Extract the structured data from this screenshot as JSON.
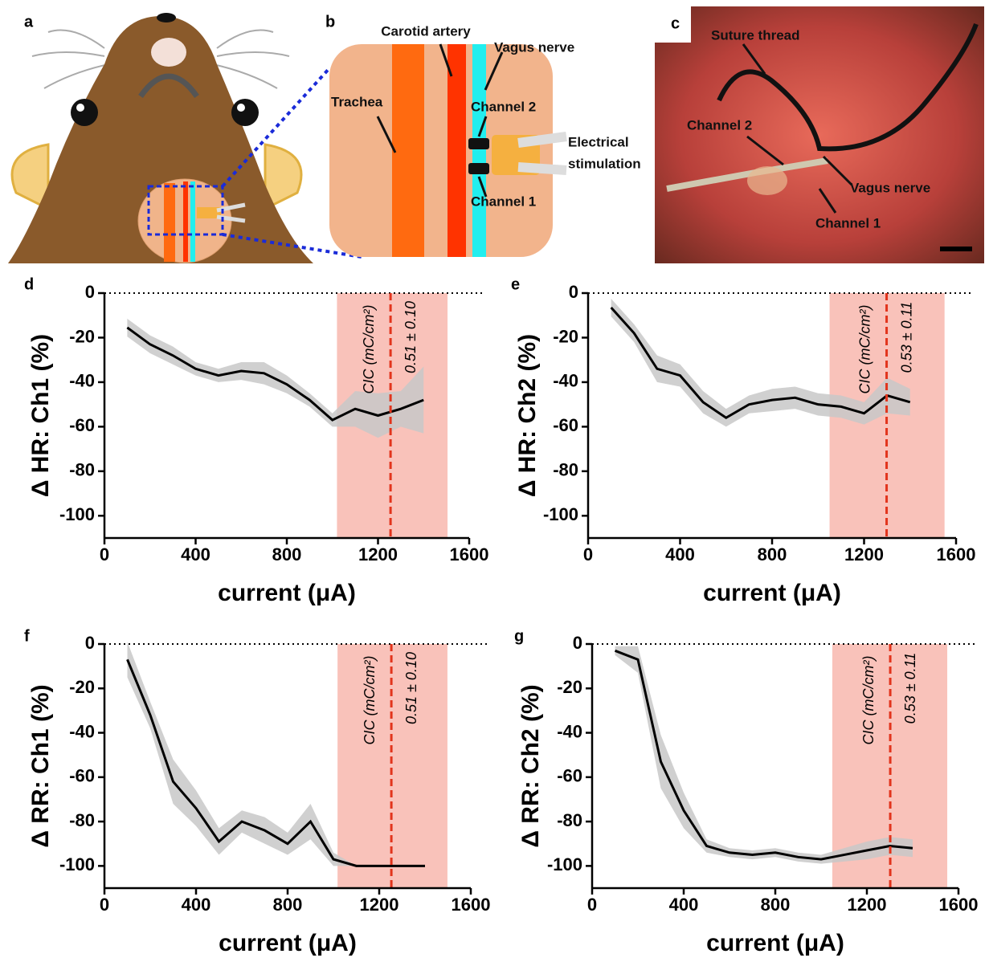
{
  "panels": {
    "a": "a",
    "b": "b",
    "c": "c"
  },
  "schematic": {
    "carotid": "Carotid artery",
    "vagus": "Vagus nerve",
    "trachea": "Trachea",
    "channel2": "Channel 2",
    "channel1": "Channel 1",
    "stimulation": [
      "Electrical",
      "stimulation"
    ]
  },
  "photo": {
    "suture": "Suture thread",
    "channel2": "Channel 2",
    "vagus": "Vagus nerve",
    "channel1": "Channel 1"
  },
  "chart_data": [
    {
      "type": "line",
      "panel": "d",
      "ylabel": "Δ HR: Ch1 (%)",
      "xlabel": "current (μA)",
      "x": [
        100,
        200,
        300,
        400,
        500,
        600,
        700,
        800,
        900,
        1000,
        1100,
        1200,
        1300,
        1400
      ],
      "series": [
        {
          "color": "#000000",
          "band_color": "#c8c8c8",
          "values": [
            -15.5,
            -23,
            -28,
            -34,
            -37,
            -35,
            -36,
            -41,
            -48,
            -57,
            -52,
            -55,
            -52,
            -48
          ],
          "error": [
            4,
            4,
            4,
            3,
            3,
            4,
            5,
            4,
            3,
            3,
            8,
            10,
            8,
            15
          ]
        }
      ],
      "highlight": {
        "range": [
          1020,
          1505
        ],
        "color": "#f9c2ba",
        "line": 1255,
        "line_color": "#e2341c"
      },
      "annotations": [
        "CIC (mC/cm²)",
        "0.51 ± 0.10"
      ],
      "xlim": [
        0,
        1600
      ],
      "xticks": [
        0,
        400,
        800,
        1200,
        1600
      ],
      "ylim": [
        -110,
        0
      ],
      "yticks": [
        0,
        -20,
        -40,
        -60,
        -80,
        -100
      ],
      "zero_line": true
    },
    {
      "type": "line",
      "panel": "e",
      "ylabel": "Δ HR: Ch2 (%)",
      "xlabel": "current (μA)",
      "x": [
        100,
        200,
        300,
        400,
        500,
        600,
        700,
        800,
        900,
        1000,
        1100,
        1200,
        1300,
        1400
      ],
      "series": [
        {
          "color": "#000000",
          "band_color": "#c8c8c8",
          "values": [
            -6.5,
            -18,
            -34,
            -37,
            -49,
            -56,
            -50,
            -48,
            -47,
            -50,
            -51,
            -54,
            -46,
            -49
          ],
          "error": [
            4,
            4,
            6,
            5,
            5,
            4,
            4,
            5,
            5,
            5,
            5,
            5,
            8,
            6
          ]
        }
      ],
      "highlight": {
        "range": [
          1050,
          1550
        ],
        "color": "#f9c2ba",
        "line": 1298,
        "line_color": "#e2341c"
      },
      "annotations": [
        "CIC (mC/cm²)",
        "0.53 ± 0.11"
      ],
      "xlim": [
        0,
        1600
      ],
      "xticks": [
        0,
        400,
        800,
        1200,
        1600
      ],
      "ylim": [
        -110,
        0
      ],
      "yticks": [
        0,
        -20,
        -40,
        -60,
        -80,
        -100
      ],
      "zero_line": true
    },
    {
      "type": "line",
      "panel": "f",
      "ylabel": "Δ RR: Ch1 (%)",
      "xlabel": "current (μA)",
      "x": [
        100,
        200,
        300,
        400,
        500,
        600,
        700,
        800,
        900,
        1000,
        1100,
        1200,
        1300,
        1400
      ],
      "series": [
        {
          "color": "#000000",
          "band_color": "#c8c8c8",
          "values": [
            -7,
            -32,
            -62,
            -74,
            -89,
            -80,
            -84,
            -90,
            -80,
            -97,
            -100,
            -100,
            -100,
            -100
          ],
          "error": [
            8,
            6,
            10,
            8,
            6,
            5,
            6,
            5,
            8,
            3,
            0,
            0,
            0,
            0
          ]
        }
      ],
      "highlight": {
        "range": [
          1018,
          1498
        ],
        "color": "#f9c2ba",
        "line": 1253,
        "line_color": "#e2341c"
      },
      "annotations": [
        "CIC (mC/cm²)",
        "0.51 ± 0.10"
      ],
      "xlim": [
        0,
        1600
      ],
      "xticks": [
        0,
        400,
        800,
        1200,
        1600
      ],
      "ylim": [
        -110,
        0
      ],
      "yticks": [
        0,
        -20,
        -40,
        -60,
        -80,
        -100
      ],
      "zero_line": true
    },
    {
      "type": "line",
      "panel": "g",
      "ylabel": "Δ RR: Ch2 (%)",
      "xlabel": "current (μA)",
      "x": [
        100,
        200,
        300,
        400,
        500,
        600,
        700,
        800,
        900,
        1000,
        1100,
        1200,
        1300,
        1400
      ],
      "series": [
        {
          "color": "#000000",
          "band_color": "#c8c8c8",
          "values": [
            -3,
            -7,
            -53,
            -75,
            -91,
            -94,
            -95,
            -94,
            -96,
            -97,
            -95,
            -93,
            -91,
            -92
          ],
          "error": [
            2,
            6,
            12,
            8,
            3,
            2,
            2,
            2,
            2,
            2,
            3,
            4,
            4,
            4
          ]
        }
      ],
      "highlight": {
        "range": [
          1049,
          1551
        ],
        "color": "#f9c2ba",
        "line": 1302,
        "line_color": "#e2341c"
      },
      "annotations": [
        "CIC (mC/cm²)",
        "0.53 ± 0.11"
      ],
      "xlim": [
        0,
        1600
      ],
      "xticks": [
        0,
        400,
        800,
        1200,
        1600
      ],
      "ylim": [
        -110,
        0
      ],
      "yticks": [
        0,
        -20,
        -40,
        -60,
        -80,
        -100
      ],
      "zero_line": true
    }
  ]
}
